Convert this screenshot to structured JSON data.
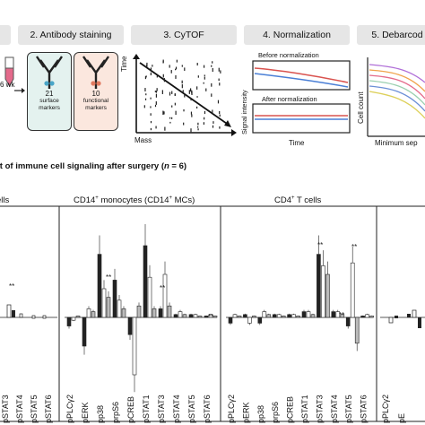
{
  "workflow": {
    "steps": [
      {
        "label": ""
      },
      {
        "label": "2. Antibody staining"
      },
      {
        "label": "3. CyTOF"
      },
      {
        "label": "4. Normalization"
      },
      {
        "label": "5. Debarcod"
      }
    ],
    "sample": {
      "time_label": "6 wk"
    },
    "antibody": {
      "surface": {
        "count": "21",
        "line1": "surface",
        "line2": "markers"
      },
      "functional": {
        "count": "10",
        "line1": "functional",
        "line2": "markers"
      }
    },
    "cytof": {
      "xlabel": "Mass",
      "ylabel": "Time"
    },
    "normalization": {
      "before": "Before normalization",
      "after": "After normalization",
      "ylabel": "Signal intensity",
      "xlabel": "Time"
    },
    "debarcode": {
      "ylabel": "Cell count",
      "xlabel": "Minimum sep"
    }
  },
  "section": {
    "title_prefix": "nt of immune cell signaling after surgery (",
    "n_label": "n",
    "title_suffix": " = 6)"
  },
  "panels": [
    {
      "title": "ells"
    },
    {
      "title_main": "CD14",
      "title_sup": "+",
      "title_mid": " monocytes (CD14",
      "title_sup2": "+",
      "title_end": " MCs)"
    },
    {
      "title_main": "CD4",
      "title_sup": "+",
      "title_end": " T cells"
    },
    {
      "title": ""
    }
  ],
  "signal_markers": [
    "pPLCγ2",
    "pERK",
    "pp38",
    "prpS6",
    "pCREB",
    "pSTAT1",
    "pSTAT3",
    "pSTAT4",
    "pSTAT5",
    "pSTAT6"
  ],
  "left_partial_markers": [
    "pSTAT3",
    "pSTAT4",
    "pSTAT5",
    "pSTAT6"
  ],
  "right_partial_markers": [
    "pPLCγ2",
    "pE"
  ],
  "significance": "**",
  "colors": {
    "dark_bar": "#222222",
    "light_bar": "#ffffff",
    "header_bg": "#e6e6e6",
    "line_red": "#d9534f",
    "line_blue": "#4a7fd6",
    "tube": "#e46a8b"
  },
  "chart_data": [
    {
      "type": "bar",
      "panel": "CD14+ monocytes (CD14+ MCs)",
      "categories": [
        "pPLCγ2",
        "pERK",
        "pp38",
        "prpS6",
        "pCREB",
        "pSTAT1",
        "pSTAT3",
        "pSTAT4",
        "pSTAT5",
        "pSTAT6"
      ],
      "series": [
        {
          "values": [
            -0.3,
            -1.0,
            2.2,
            1.3,
            -0.6,
            2.5,
            0.3,
            0.1,
            0.1,
            0.05
          ]
        },
        {
          "values": [
            -0.1,
            0.3,
            1.0,
            0.6,
            -2.0,
            1.4,
            1.5,
            0.2,
            0.1,
            0.1
          ]
        },
        {
          "values": [
            0.05,
            0.2,
            0.7,
            0.3,
            0.4,
            0.3,
            0.4,
            0.1,
            0.05,
            0.05
          ]
        }
      ]
    },
    {
      "type": "bar",
      "panel": "CD4+ T cells",
      "categories": [
        "pPLCγ2",
        "pERK",
        "pp38",
        "prpS6",
        "pCREB",
        "pSTAT1",
        "pSTAT3",
        "pSTAT4",
        "pSTAT5",
        "pSTAT6"
      ],
      "series": [
        {
          "values": [
            -0.2,
            0.1,
            -0.2,
            0.1,
            0.1,
            0.2,
            2.2,
            0.2,
            -0.3,
            0.05
          ]
        },
        {
          "values": [
            0.1,
            -0.2,
            0.2,
            0.1,
            0.1,
            0.2,
            1.8,
            0.2,
            1.9,
            0.1
          ]
        },
        {
          "values": [
            0.05,
            0.05,
            0.1,
            0.05,
            0.05,
            0.1,
            1.5,
            0.1,
            -0.9,
            0.05
          ]
        }
      ]
    }
  ]
}
